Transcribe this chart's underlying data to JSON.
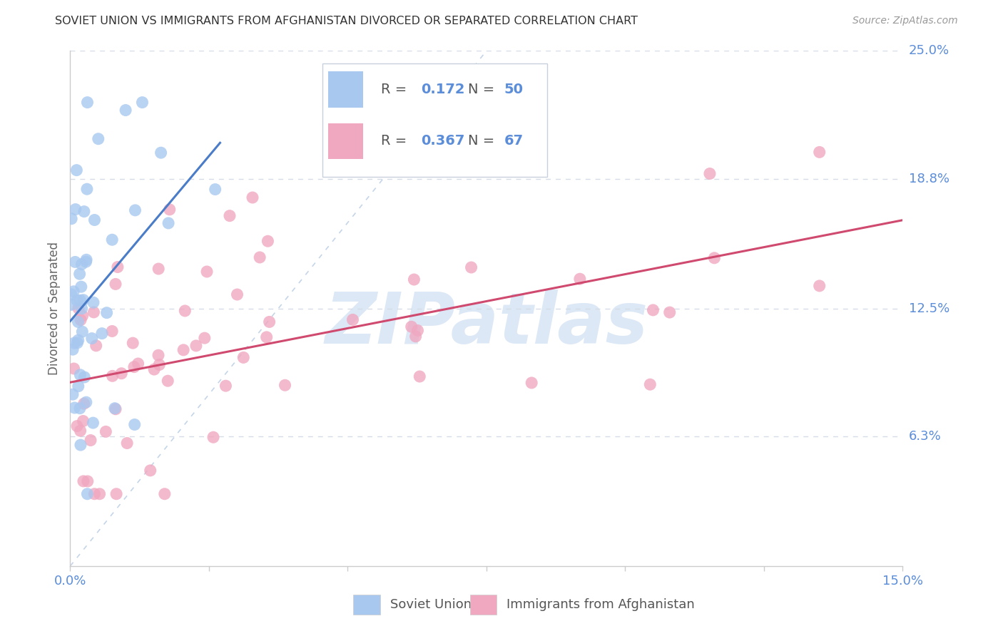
{
  "title": "SOVIET UNION VS IMMIGRANTS FROM AFGHANISTAN DIVORCED OR SEPARATED CORRELATION CHART",
  "source": "Source: ZipAtlas.com",
  "ylabel": "Divorced or Separated",
  "xlim": [
    0.0,
    0.15
  ],
  "ylim": [
    0.0,
    0.25
  ],
  "ytick_labels": [
    "6.3%",
    "12.5%",
    "18.8%",
    "25.0%"
  ],
  "ytick_positions": [
    0.063,
    0.125,
    0.188,
    0.25
  ],
  "blue_scatter_color": "#a8c8f0",
  "pink_scatter_color": "#f0a8c0",
  "blue_line_color": "#4a7cc7",
  "pink_line_color": "#d04a70",
  "dashed_line_color": "#c5d5e8",
  "label_color": "#5b8dd9",
  "grid_color": "#d5dce8",
  "axis_color": "#cccccc",
  "R_blue": 0.172,
  "N_blue": 50,
  "R_pink": 0.367,
  "N_pink": 67,
  "legend_label_blue": "Soviet Union",
  "legend_label_pink": "Immigrants from Afghanistan",
  "watermark_color": "#dce8f5",
  "title_color": "#333333",
  "source_color": "#999999",
  "text_color": "#555555"
}
